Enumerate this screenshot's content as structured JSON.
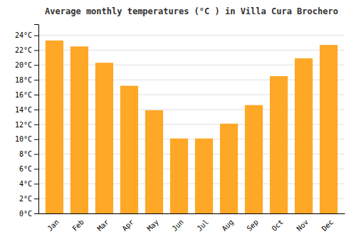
{
  "chart_data": {
    "type": "bar",
    "title": "Average monthly temperatures (°C ) in Villa Cura Brochero",
    "categories": [
      "Jan",
      "Feb",
      "Mar",
      "Apr",
      "May",
      "Jun",
      "Jul",
      "Aug",
      "Sep",
      "Oct",
      "Nov",
      "Dec"
    ],
    "values": [
      23.3,
      22.5,
      20.3,
      17.2,
      13.9,
      10.1,
      10.1,
      12.1,
      14.6,
      18.5,
      20.9,
      22.7
    ],
    "color": "#FFA726",
    "ylim": [
      0,
      25.5
    ],
    "yticks": [
      {
        "value": 0,
        "label": "0°C"
      },
      {
        "value": 2,
        "label": "2°C"
      },
      {
        "value": 4,
        "label": "4°C"
      },
      {
        "value": 6,
        "label": "6°C"
      },
      {
        "value": 8,
        "label": "8°C"
      },
      {
        "value": 10,
        "label": "10°C"
      },
      {
        "value": 12,
        "label": "12°C"
      },
      {
        "value": 14,
        "label": "14°C"
      },
      {
        "value": 16,
        "label": "16°C"
      },
      {
        "value": 18,
        "label": "18°C"
      },
      {
        "value": 20,
        "label": "20°C"
      },
      {
        "value": 22,
        "label": "22°C"
      },
      {
        "value": 24,
        "label": "24°C"
      }
    ],
    "grid": true
  }
}
